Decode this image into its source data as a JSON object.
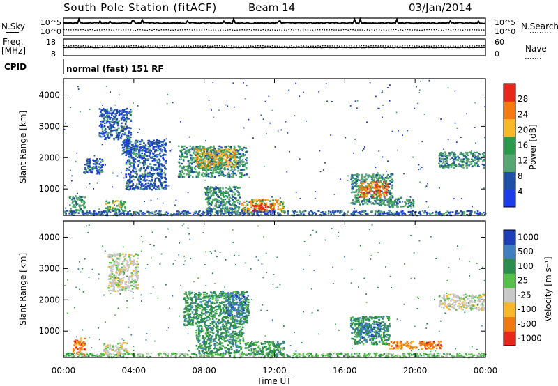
{
  "header": {
    "station": "South Pole Station (fitACF)",
    "beam": "Beam 14",
    "date": "03/Jan/2014"
  },
  "panels": {
    "nsky_label": "N.Sky",
    "nsearch_label": "N.Search",
    "freq_label": "Freq.",
    "freq_unit": "[MHz]",
    "nave_label": "Nave",
    "cpid_label": "CPID",
    "cpid_value": "normal (fast) 151 RF",
    "noise_ticks_left": [
      "10^5",
      "10^0"
    ],
    "noise_ticks_right": [
      "10^5",
      "10^0"
    ],
    "freq_ticks_left": [
      "18",
      "8"
    ],
    "freq_ticks_right": [
      "60",
      "0"
    ]
  },
  "chart_data": [
    {
      "type": "heatmap",
      "name": "power",
      "ylabel": "Slant Range [km]",
      "ylim": [
        180,
        4500
      ],
      "yticks": [
        "1000",
        "2000",
        "3000",
        "4000"
      ],
      "xlim": [
        0,
        24
      ],
      "colorbar": {
        "label": "Power [dB]",
        "ticks": [
          "28",
          "24",
          "20",
          "16",
          "12",
          "8",
          "4"
        ],
        "colors": [
          "#e8261b",
          "#f57a10",
          "#f7b82a",
          "#2c9a4c",
          "#57a773",
          "#1f4fa6",
          "#1b3ce8"
        ]
      },
      "regions": [
        {
          "t0": 0.3,
          "t1": 1.2,
          "r0": 300,
          "r1": 800,
          "level": 2
        },
        {
          "t0": 1.1,
          "t1": 2.2,
          "r0": 1500,
          "r1": 2000,
          "level": 1
        },
        {
          "t0": 2.0,
          "t1": 3.8,
          "r0": 2600,
          "r1": 3600,
          "level": 1
        },
        {
          "t0": 3.3,
          "t1": 4.2,
          "r0": 2100,
          "r1": 2600,
          "level": 1
        },
        {
          "t0": 2.3,
          "t1": 3.5,
          "r0": 300,
          "r1": 650,
          "level": 3
        },
        {
          "t0": 3.5,
          "t1": 5.8,
          "r0": 1000,
          "r1": 2600,
          "level": 1
        },
        {
          "t0": 6.5,
          "t1": 10.4,
          "r0": 1400,
          "r1": 2400,
          "level": 2
        },
        {
          "t0": 7.5,
          "t1": 9.8,
          "r0": 1700,
          "r1": 2300,
          "level": 4
        },
        {
          "t0": 8.0,
          "t1": 10.0,
          "r0": 300,
          "r1": 1100,
          "level": 2
        },
        {
          "t0": 10.1,
          "t1": 12.5,
          "r0": 250,
          "r1": 700,
          "level": 4
        },
        {
          "t0": 10.7,
          "t1": 11.9,
          "r0": 300,
          "r1": 550,
          "level": 6
        },
        {
          "t0": 16.3,
          "t1": 18.7,
          "r0": 500,
          "r1": 1500,
          "level": 2
        },
        {
          "t0": 16.8,
          "t1": 18.4,
          "r0": 750,
          "r1": 1250,
          "level": 5
        },
        {
          "t0": 18.3,
          "t1": 19.9,
          "r0": 450,
          "r1": 750,
          "level": 2
        },
        {
          "t0": 21.3,
          "t1": 23.9,
          "r0": 1700,
          "r1": 2200,
          "level": 2
        },
        {
          "t0": 0.0,
          "t1": 24.0,
          "r0": 180,
          "r1": 330,
          "level": 1
        }
      ]
    },
    {
      "type": "heatmap",
      "name": "velocity",
      "ylabel": "Slant Range [km]",
      "xlabel": "Time UT",
      "ylim": [
        180,
        4500
      ],
      "yticks": [
        "1000",
        "2000",
        "3000",
        "4000"
      ],
      "xlim": [
        0,
        24
      ],
      "xticks": [
        "00:00",
        "04:00",
        "08:00",
        "12:00",
        "16:00",
        "20:00",
        "00:00"
      ],
      "colorbar": {
        "label": "Velocity [m s⁻¹]",
        "ticks": [
          "1000",
          "500",
          "100",
          "25",
          "-25",
          "-100",
          "-500",
          "-1000"
        ],
        "colors": [
          "#1f3fb8",
          "#3f7fbf",
          "#2c8c4c",
          "#57c04a",
          "#c8c8c8",
          "#f7b82a",
          "#f07a10",
          "#e8261b"
        ]
      },
      "regions": [
        {
          "t0": 0.5,
          "t1": 1.2,
          "r0": 250,
          "r1": 800,
          "cls": 6
        },
        {
          "t0": 0.0,
          "t1": 24.0,
          "r0": 180,
          "r1": 320,
          "cls": 3
        },
        {
          "t0": 2.2,
          "t1": 3.6,
          "r0": 250,
          "r1": 650,
          "cls": 4
        },
        {
          "t0": 2.5,
          "t1": 4.2,
          "r0": 2300,
          "r1": 3500,
          "cls": 4
        },
        {
          "t0": 6.8,
          "t1": 10.5,
          "r0": 1200,
          "r1": 2300,
          "cls": 2
        },
        {
          "t0": 7.5,
          "t1": 10.2,
          "r0": 300,
          "r1": 1200,
          "cls": 2
        },
        {
          "t0": 9.2,
          "t1": 10.3,
          "r0": 1500,
          "r1": 2200,
          "cls": 1
        },
        {
          "t0": 10.3,
          "t1": 12.5,
          "r0": 250,
          "r1": 700,
          "cls": 2
        },
        {
          "t0": 16.3,
          "t1": 18.5,
          "r0": 600,
          "r1": 1500,
          "cls": 2
        },
        {
          "t0": 16.8,
          "t1": 18.0,
          "r0": 800,
          "r1": 1300,
          "cls": 1
        },
        {
          "t0": 18.4,
          "t1": 21.5,
          "r0": 450,
          "r1": 700,
          "cls": 6
        },
        {
          "t0": 21.3,
          "t1": 23.9,
          "r0": 1700,
          "r1": 2200,
          "cls": 4
        }
      ]
    }
  ]
}
